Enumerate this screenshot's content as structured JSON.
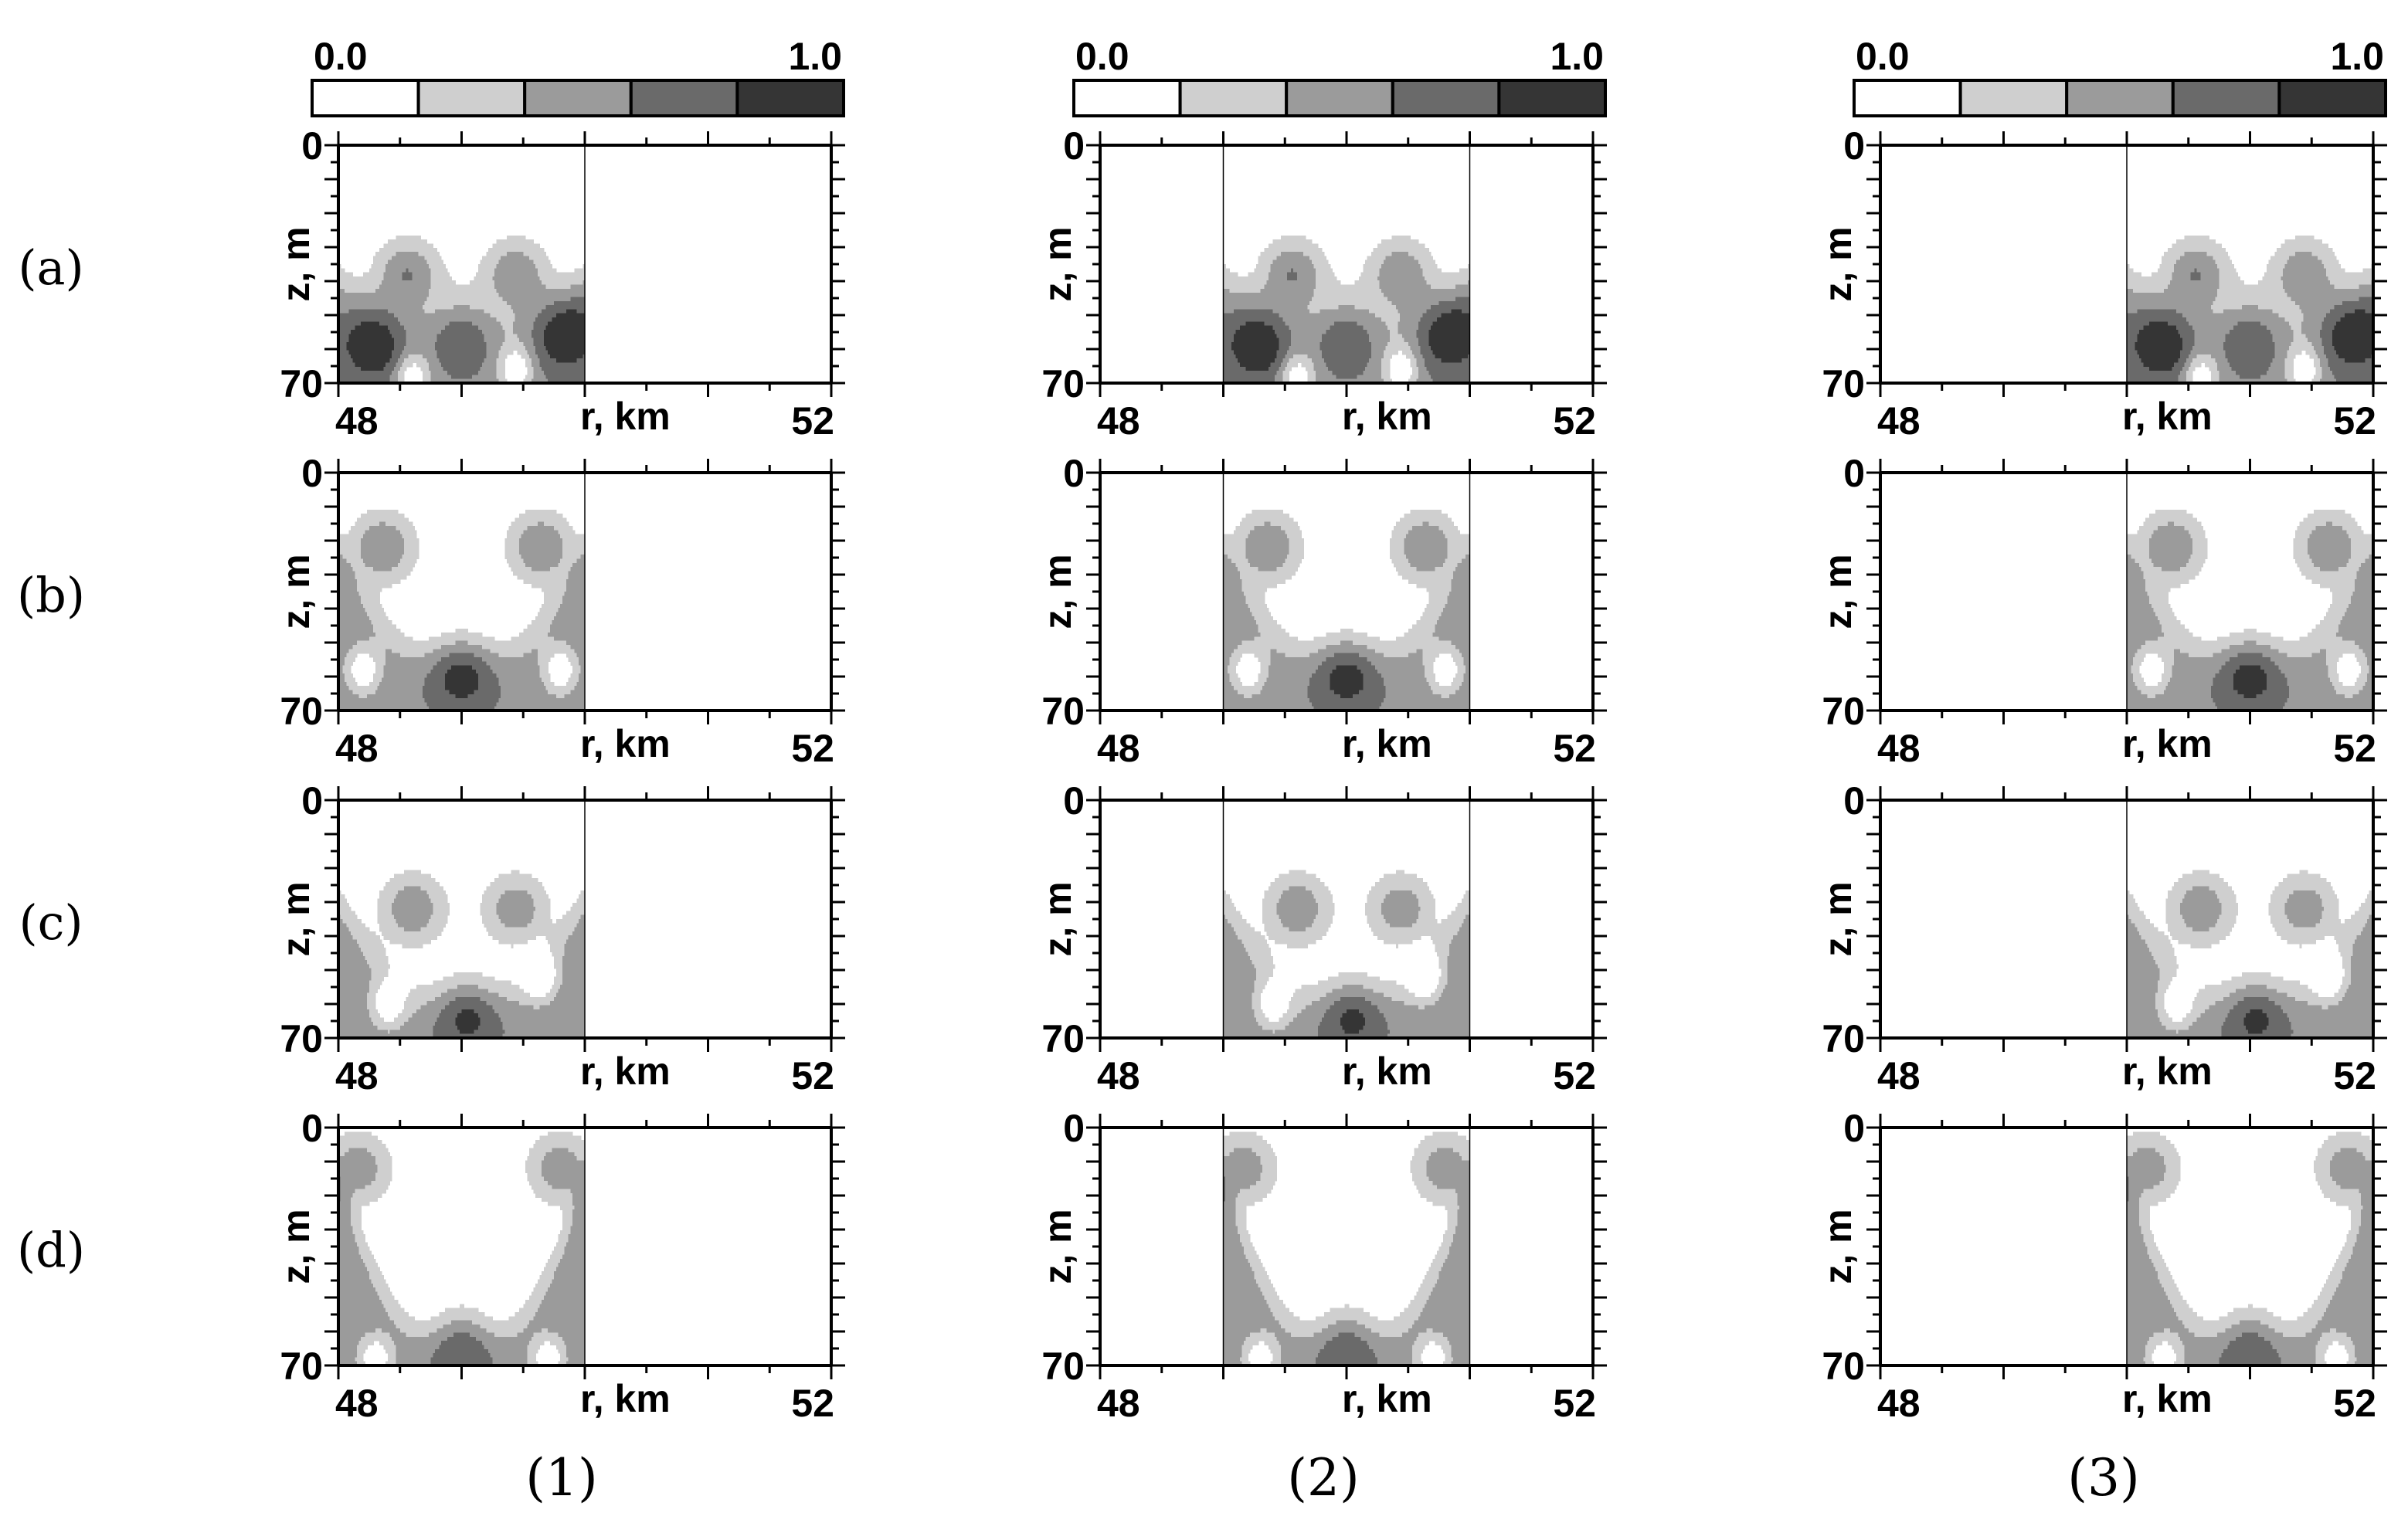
{
  "chart_data": {
    "type": "heatmap",
    "colorbar": {
      "min_label": "0.0",
      "max_label": "1.0",
      "levels": [
        "#ffffff",
        "#cfcfcf",
        "#9b9b9b",
        "#6a6a6a",
        "#353535"
      ]
    },
    "x_axis": {
      "label": "r, km",
      "min_label": "48",
      "max_label": "52",
      "range": [
        48,
        52
      ]
    },
    "y_axis": {
      "label": "z, m",
      "min_label": "0",
      "max_label": "70",
      "range": [
        0,
        70
      ],
      "inverted": true
    },
    "row_labels": [
      "(a)",
      "(b)",
      "(c)",
      "(d)"
    ],
    "column_labels": [
      "(1)",
      "(2)",
      "(3)"
    ],
    "column_data_window_km": [
      [
        48,
        50
      ],
      [
        49,
        51
      ],
      [
        50,
        52
      ]
    ],
    "rows": [
      {
        "label": "(a)",
        "field": {
          "crest_depth_m": [
            25,
            45,
            25
          ],
          "blobs": [
            [
              0.28,
              38,
              1.0
            ],
            [
              0.72,
              38,
              0.95
            ],
            [
              0.15,
              58,
              0.85
            ],
            [
              0.5,
              55,
              0.9
            ],
            [
              0.92,
              55,
              0.85
            ]
          ],
          "light_pockets": [
            [
              0.3,
              68
            ],
            [
              0.72,
              66
            ]
          ]
        }
      },
      {
        "label": "(b)",
        "field": {
          "crest_depth_m": [
            10,
            45,
            10
          ],
          "blobs": [
            [
              0.18,
              22,
              1.0
            ],
            [
              0.82,
              22,
              1.0
            ],
            [
              0.5,
              58,
              1.0
            ]
          ],
          "light_pockets": [
            [
              0.1,
              58
            ],
            [
              0.9,
              58
            ]
          ]
        }
      },
      {
        "label": "(c)",
        "field": {
          "crest_depth_m": [
            15,
            50,
            15
          ],
          "blobs": [
            [
              0.3,
              32,
              0.95
            ],
            [
              0.72,
              32,
              0.9
            ],
            [
              0.52,
              62,
              0.95
            ]
          ],
          "light_pockets": [
            [
              0.2,
              60
            ],
            [
              0.82,
              52
            ]
          ]
        }
      },
      {
        "label": "(d)",
        "field": {
          "crest_depth_m": [
            2,
            55,
            2
          ],
          "blobs": [
            [
              0.08,
              12,
              0.9
            ],
            [
              0.9,
              12,
              0.9
            ],
            [
              0.5,
              64,
              1.0
            ]
          ],
          "light_pockets": [
            [
              0.15,
              68
            ],
            [
              0.85,
              68
            ]
          ]
        }
      }
    ]
  }
}
